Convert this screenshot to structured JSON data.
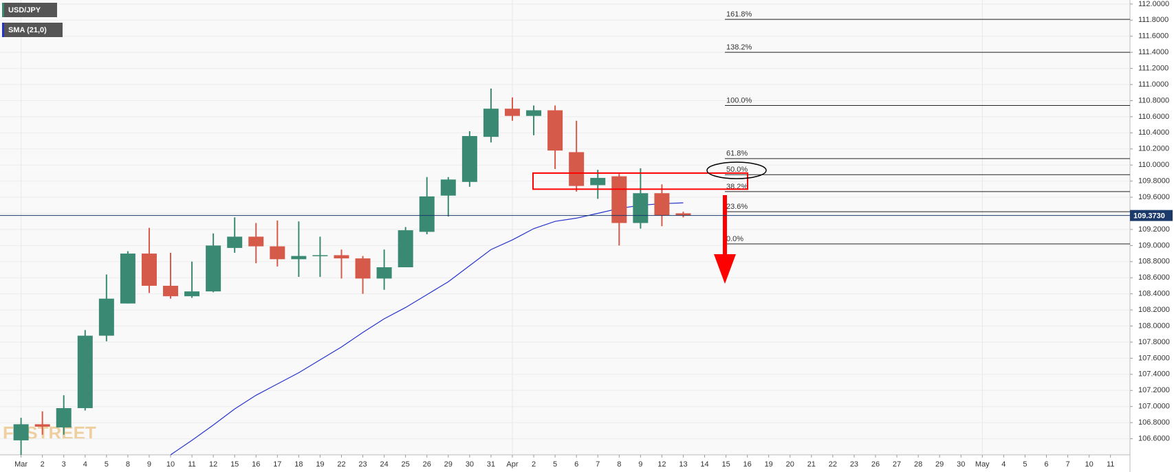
{
  "chart_data": {
    "type": "candlestick",
    "categories": [
      "Mar",
      "2",
      "3",
      "4",
      "5",
      "8",
      "9",
      "10",
      "11",
      "12",
      "15",
      "16",
      "17",
      "18",
      "19",
      "22",
      "23",
      "24",
      "25",
      "26",
      "29",
      "30",
      "31",
      "Apr",
      "2",
      "5",
      "6",
      "7",
      "8",
      "9",
      "12",
      "13",
      "14",
      "15",
      "16",
      "19",
      "20",
      "21",
      "22",
      "23",
      "26",
      "27",
      "28",
      "29",
      "30",
      "May",
      "4",
      "5",
      "6",
      "7",
      "10",
      "11"
    ],
    "up_color": "#3a8a73",
    "down_color": "#d65a49",
    "series": [
      {
        "name": "USD/JPY",
        "open": [
          106.58,
          106.78,
          106.74,
          106.98,
          107.88,
          108.28,
          108.9,
          108.5,
          108.37,
          108.43,
          108.97,
          109.11,
          108.99,
          108.83,
          108.87,
          108.88,
          108.84,
          108.59,
          108.73,
          109.17,
          109.62,
          109.79,
          110.35,
          110.7,
          110.61,
          110.68,
          110.16,
          109.75,
          109.86,
          109.28,
          109.65,
          109.4,
          null,
          null,
          null,
          null,
          null,
          null,
          null,
          null,
          null,
          null,
          null,
          null,
          null,
          null,
          null,
          null,
          null,
          null,
          null,
          null
        ],
        "high": [
          106.86,
          106.94,
          107.14,
          107.95,
          108.64,
          108.93,
          109.22,
          108.91,
          108.8,
          109.15,
          109.35,
          109.28,
          109.31,
          109.3,
          109.11,
          108.95,
          108.87,
          108.95,
          109.23,
          109.85,
          109.85,
          110.42,
          110.95,
          110.84,
          110.74,
          110.74,
          110.55,
          109.94,
          109.89,
          109.96,
          109.76,
          109.42,
          null,
          null,
          null,
          null,
          null,
          null,
          null,
          null,
          null,
          null,
          null,
          null,
          null,
          null,
          null,
          null,
          null,
          null,
          null,
          null
        ],
        "low": [
          106.4,
          106.65,
          106.65,
          106.95,
          107.81,
          108.28,
          108.41,
          108.34,
          108.35,
          108.42,
          108.91,
          108.78,
          108.74,
          108.61,
          108.61,
          108.59,
          108.4,
          108.45,
          108.73,
          109.14,
          109.36,
          109.73,
          110.28,
          110.55,
          110.37,
          109.95,
          109.67,
          109.58,
          109.0,
          109.21,
          109.24,
          109.35,
          null,
          null,
          null,
          null,
          null,
          null,
          null,
          null,
          null,
          null,
          null,
          null,
          null,
          null,
          null,
          null,
          null,
          null,
          null,
          null
        ],
        "close": [
          106.78,
          106.75,
          106.98,
          107.88,
          108.34,
          108.9,
          108.5,
          108.37,
          108.43,
          109.0,
          109.11,
          108.99,
          108.83,
          108.87,
          108.88,
          108.84,
          108.59,
          108.73,
          109.19,
          109.61,
          109.82,
          110.36,
          110.7,
          110.61,
          110.68,
          110.18,
          109.74,
          109.84,
          109.28,
          109.65,
          109.37,
          109.37,
          null,
          null,
          null,
          null,
          null,
          null,
          null,
          null,
          null,
          null,
          null,
          null,
          null,
          null,
          null,
          null,
          null,
          null,
          null,
          null
        ]
      },
      {
        "name": "SMA (21,0)",
        "type": "line",
        "color": "#2433cc",
        "values": [
          null,
          null,
          null,
          null,
          null,
          null,
          null,
          106.4,
          106.58,
          106.77,
          106.97,
          107.14,
          107.28,
          107.42,
          107.58,
          107.74,
          107.92,
          108.09,
          108.23,
          108.39,
          108.55,
          108.75,
          108.95,
          109.07,
          109.21,
          109.3,
          109.34,
          109.4,
          109.46,
          109.5,
          109.52,
          109.53,
          null,
          null,
          null,
          null,
          null,
          null,
          null,
          null,
          null,
          null,
          null,
          null,
          null,
          null,
          null,
          null,
          null,
          null,
          null,
          null
        ]
      }
    ],
    "fib_levels": [
      {
        "label": "161.8%",
        "value": 111.81
      },
      {
        "label": "138.2%",
        "value": 111.4
      },
      {
        "label": "100.0%",
        "value": 110.74
      },
      {
        "label": "61.8%",
        "value": 110.08
      },
      {
        "label": "50.0%",
        "value": 109.88
      },
      {
        "label": "38.2%",
        "value": 109.67
      },
      {
        "label": "23.6%",
        "value": 109.42
      },
      {
        "label": "0.0%",
        "value": 109.02
      }
    ],
    "last_price": {
      "value": 109.373,
      "label": "109.3730"
    },
    "watermark": "FXSTREET",
    "ylim": [
      106.4,
      112.05
    ],
    "yticks": [
      {
        "value": 106.6,
        "label": "106.6000"
      },
      {
        "value": 106.8,
        "label": "106.8000"
      },
      {
        "value": 107.0,
        "label": "107.0000"
      },
      {
        "value": 107.2,
        "label": "107.2000"
      },
      {
        "value": 107.4,
        "label": "107.4000"
      },
      {
        "value": 107.6,
        "label": "107.6000"
      },
      {
        "value": 107.8,
        "label": "107.8000"
      },
      {
        "value": 108.0,
        "label": "108.0000"
      },
      {
        "value": 108.2,
        "label": "108.2000"
      },
      {
        "value": 108.4,
        "label": "108.4000"
      },
      {
        "value": 108.6,
        "label": "108.6000"
      },
      {
        "value": 108.8,
        "label": "108.8000"
      },
      {
        "value": 109.0,
        "label": "109.0000"
      },
      {
        "value": 109.2,
        "label": "109.2000"
      },
      {
        "value": 109.4,
        "label": "109.4000"
      },
      {
        "value": 109.6,
        "label": "109.6000"
      },
      {
        "value": 109.8,
        "label": "109.8000"
      },
      {
        "value": 110.0,
        "label": "110.0000"
      },
      {
        "value": 110.2,
        "label": "110.2000"
      },
      {
        "value": 110.4,
        "label": "110.4000"
      },
      {
        "value": 110.6,
        "label": "110.6000"
      },
      {
        "value": 110.8,
        "label": "110.8000"
      },
      {
        "value": 111.0,
        "label": "111.0000"
      },
      {
        "value": 111.2,
        "label": "111.2000"
      },
      {
        "value": 111.4,
        "label": "111.4000"
      },
      {
        "value": 111.6,
        "label": "111.6000"
      },
      {
        "value": 111.8,
        "label": "111.8000"
      },
      {
        "value": 112.0,
        "label": "112.0000"
      }
    ],
    "grid": true
  }
}
